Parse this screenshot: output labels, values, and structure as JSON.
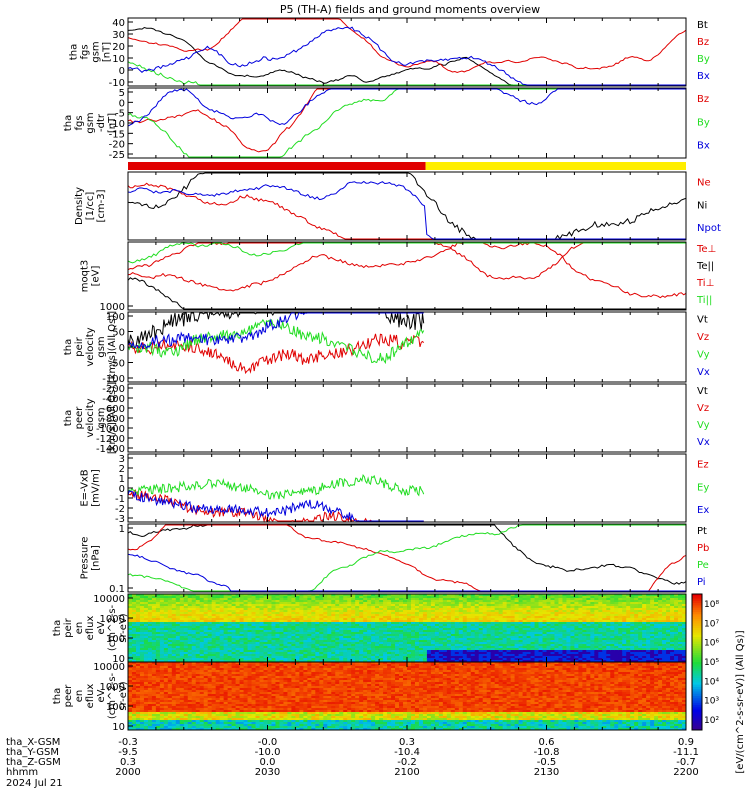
{
  "title": "P5 (TH-A) fields and ground moments overview",
  "colors": {
    "black": "#000000",
    "red": "#e00000",
    "green": "#22dd22",
    "blue": "#0000dd",
    "yellow": "#ffee00"
  },
  "chart_data": [
    {
      "type": "line",
      "id": "fgs_gsm",
      "ylabel_lines": [
        "tha",
        "fgs",
        "gsm",
        "[nT]"
      ],
      "yticks": [
        "40",
        "30",
        "20",
        "10",
        "0",
        "-10"
      ],
      "ylim": [
        -15,
        42
      ],
      "series": [
        {
          "name": "Bt",
          "color": "#000000"
        },
        {
          "name": "Bz",
          "color": "#e00000"
        },
        {
          "name": "By",
          "color": "#22dd22"
        },
        {
          "name": "Bx",
          "color": "#0000dd"
        }
      ]
    },
    {
      "type": "line",
      "id": "fgs_gsm_detrend",
      "ylabel_lines": [
        "tha",
        "fgs",
        "gsm",
        "-dtr",
        "[nT]"
      ],
      "yticks": [
        "5",
        "0",
        "-5",
        "-10",
        "-15",
        "-20",
        "-25"
      ],
      "ylim": [
        -27,
        7
      ],
      "series": [
        {
          "name": "Bz",
          "color": "#e00000"
        },
        {
          "name": "By",
          "color": "#22dd22"
        },
        {
          "name": "Bx",
          "color": "#0000dd"
        }
      ]
    },
    {
      "type": "bar",
      "id": "mode_bar",
      "segments": [
        {
          "color": "#e00000",
          "from": "2000",
          "to": "2104"
        },
        {
          "color": "#ffee00",
          "from": "2104",
          "to": "2200"
        }
      ]
    },
    {
      "type": "line",
      "id": "density",
      "ylabel_lines": [
        "Density",
        "[1/cc]",
        "[cm-3]"
      ],
      "yticks": [],
      "series": [
        {
          "name": "Ne",
          "color": "#e00000"
        },
        {
          "name": "Ni",
          "color": "#000000"
        },
        {
          "name": "Npot",
          "color": "#0000dd"
        }
      ]
    },
    {
      "type": "line",
      "id": "temperature",
      "ylabel_lines": [
        "moqt3",
        "[eV]"
      ],
      "yticks": [
        "1000"
      ],
      "series": [
        {
          "name": "Te⊥",
          "color": "#e00000"
        },
        {
          "name": "Te||",
          "color": "#000000"
        },
        {
          "name": "Ti⊥",
          "color": "#e00000"
        },
        {
          "name": "Ti||",
          "color": "#22dd22"
        }
      ]
    },
    {
      "type": "line",
      "id": "peir_velocity",
      "ylabel_lines": [
        "tha",
        "peir",
        "velocity",
        "gsm",
        "[km/s](All Qs)]"
      ],
      "yticks": [
        "100",
        "50",
        "0",
        "-50",
        "-100"
      ],
      "ylim": [
        -120,
        120
      ],
      "series": [
        {
          "name": "Vt",
          "color": "#000000"
        },
        {
          "name": "Vz",
          "color": "#e00000"
        },
        {
          "name": "Vy",
          "color": "#22dd22"
        },
        {
          "name": "Vx",
          "color": "#0000dd"
        }
      ]
    },
    {
      "type": "line",
      "id": "peer_velocity",
      "ylabel_lines": [
        "tha",
        "peer",
        "velocity",
        "gsm",
        "[km/s](All Qs)]"
      ],
      "yticks": [
        "-200",
        "-400",
        "-600",
        "-800",
        "-1000",
        "-1200",
        "-1400"
      ],
      "ylim": [
        -1450,
        -150
      ],
      "series": [
        {
          "name": "Vt",
          "color": "#000000"
        },
        {
          "name": "Vz",
          "color": "#e00000"
        },
        {
          "name": "Vy",
          "color": "#22dd22"
        },
        {
          "name": "Vx",
          "color": "#0000dd"
        }
      ]
    },
    {
      "type": "line",
      "id": "efield",
      "ylabel_lines": [
        "E=-VxB",
        "[mV/m]"
      ],
      "yticks": [
        "3",
        "2",
        "1",
        "0",
        "-1",
        "-2",
        "-3"
      ],
      "ylim": [
        -3.3,
        4
      ],
      "series": [
        {
          "name": "Ez",
          "color": "#e00000"
        },
        {
          "name": "Ey",
          "color": "#22dd22"
        },
        {
          "name": "Ex",
          "color": "#0000dd"
        }
      ]
    },
    {
      "type": "line",
      "id": "pressure",
      "ylabel_lines": [
        "Pressure",
        "[nPa]"
      ],
      "yticks": [
        "1",
        "0.1"
      ],
      "series": [
        {
          "name": "Pt",
          "color": "#000000"
        },
        {
          "name": "Pb",
          "color": "#e00000"
        },
        {
          "name": "Pe",
          "color": "#22dd22"
        },
        {
          "name": "Pi",
          "color": "#0000dd"
        }
      ]
    },
    {
      "type": "heatmap",
      "id": "peir_spec",
      "ylabel_lines": [
        "tha",
        "peir",
        "en",
        "eflux",
        "eV",
        "(cm^2-s-",
        "sr-eV)"
      ],
      "yticks": [
        "10000",
        "1000",
        "100",
        "10"
      ]
    },
    {
      "type": "heatmap",
      "id": "peer_spec",
      "ylabel_lines": [
        "tha",
        "peer",
        "en",
        "eflux",
        "eV",
        "(cm^2-s-",
        "sr-eV)"
      ],
      "yticks": [
        "10000",
        "1000",
        "100",
        "10"
      ]
    }
  ],
  "colorbar": {
    "label": "[eV/(cm^2-s-sr-eV)] (All Qs)]",
    "ticks": [
      "10⁸",
      "10⁷",
      "10⁶",
      "10⁵",
      "10⁴",
      "10³",
      "10²"
    ]
  },
  "xaxis": {
    "rows": [
      {
        "label": "tha_X-GSM",
        "values": [
          "-0.3",
          "-0.0",
          "0.3",
          "0.6",
          "0.9"
        ]
      },
      {
        "label": "tha_Y-GSM",
        "values": [
          "-9.5",
          "-10.0",
          "-10.4",
          "-10.8",
          "-11.1"
        ]
      },
      {
        "label": "tha_Z-GSM",
        "values": [
          "0.3",
          "0.0",
          "-0.2",
          "-0.5",
          "-0.7"
        ]
      },
      {
        "label": "hhmm",
        "values": [
          "2000",
          "2030",
          "2100",
          "2130",
          "2200"
        ]
      }
    ],
    "date": "2024 Jul 21"
  }
}
